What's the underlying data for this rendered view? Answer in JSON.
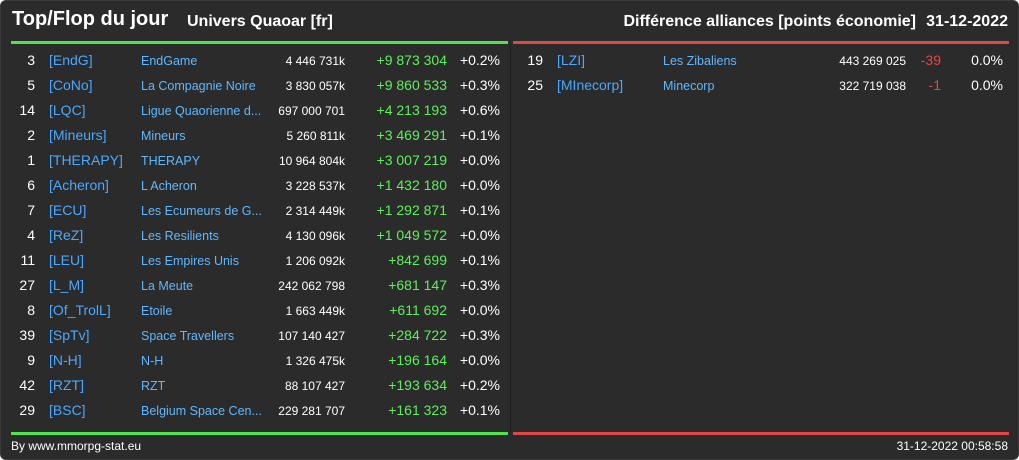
{
  "header": {
    "title": "Top/Flop du jour",
    "subtitle": "Univers Quaoar [fr]",
    "right_title": "Différence alliances [points économie]",
    "date": "31-12-2022"
  },
  "colors": {
    "background": "#2b2b2b",
    "top_accent": "#4ee44e",
    "flop_accent": "#e04848",
    "tag_link": "#4aa8ff",
    "name_link": "#5fb8ff",
    "positive": "#5cf05c",
    "negative": "#e04848"
  },
  "top": [
    {
      "rank": "3",
      "tag": "[EndG]",
      "name": "EndGame",
      "points": "4 446 731k",
      "diff": "+9 873 304",
      "pct": "+0.2%"
    },
    {
      "rank": "5",
      "tag": "[CoNo]",
      "name": "La Compagnie Noire",
      "points": "3 830 057k",
      "diff": "+9 860 533",
      "pct": "+0.3%"
    },
    {
      "rank": "14",
      "tag": "[LQC]",
      "name": "Ligue Quaorienne d...",
      "points": "697 000 701",
      "diff": "+4 213 193",
      "pct": "+0.6%"
    },
    {
      "rank": "2",
      "tag": "[Mineurs]",
      "name": "Mineurs",
      "points": "5 260 811k",
      "diff": "+3 469 291",
      "pct": "+0.1%"
    },
    {
      "rank": "1",
      "tag": "[THERAPY]",
      "name": "THERAPY",
      "points": "10 964 804k",
      "diff": "+3 007 219",
      "pct": "+0.0%"
    },
    {
      "rank": "6",
      "tag": "[Acheron]",
      "name": "L Acheron",
      "points": "3 228 537k",
      "diff": "+1 432 180",
      "pct": "+0.0%"
    },
    {
      "rank": "7",
      "tag": "[ECU]",
      "name": "Les Ecumeurs de G...",
      "points": "2 314 449k",
      "diff": "+1 292 871",
      "pct": "+0.1%"
    },
    {
      "rank": "4",
      "tag": "[ReZ]",
      "name": "Les Resilients",
      "points": "4 130 096k",
      "diff": "+1 049 572",
      "pct": "+0.0%"
    },
    {
      "rank": "11",
      "tag": "[LEU]",
      "name": "Les Empires Unis",
      "points": "1 206 092k",
      "diff": "+842 699",
      "pct": "+0.1%"
    },
    {
      "rank": "27",
      "tag": "[L_M]",
      "name": "La Meute",
      "points": "242 062 798",
      "diff": "+681 147",
      "pct": "+0.3%"
    },
    {
      "rank": "8",
      "tag": "[Of_TrolL]",
      "name": "Etoile",
      "points": "1 663 449k",
      "diff": "+611 692",
      "pct": "+0.0%"
    },
    {
      "rank": "39",
      "tag": "[SpTv]",
      "name": "Space Travellers",
      "points": "107 140 427",
      "diff": "+284 722",
      "pct": "+0.3%"
    },
    {
      "rank": "9",
      "tag": "[N-H]",
      "name": "N-H",
      "points": "1 326 475k",
      "diff": "+196 164",
      "pct": "+0.0%"
    },
    {
      "rank": "42",
      "tag": "[RZT]",
      "name": "RZT",
      "points": "88 107 427",
      "diff": "+193 634",
      "pct": "+0.2%"
    },
    {
      "rank": "29",
      "tag": "[BSC]",
      "name": "Belgium Space Cen...",
      "points": "229 281 707",
      "diff": "+161 323",
      "pct": "+0.1%"
    }
  ],
  "flop": [
    {
      "rank": "19",
      "tag": "[LZI]",
      "name": "Les Zibaliens",
      "points": "443 269 025",
      "diff": "-39",
      "pct": "0.0%"
    },
    {
      "rank": "25",
      "tag": "[MInecorp]",
      "name": "Minecorp",
      "points": "322 719 038",
      "diff": "-1",
      "pct": "0.0%"
    }
  ],
  "footer": {
    "credit": "By www.mmorpg-stat.eu",
    "timestamp": "31-12-2022 00:58:58"
  }
}
